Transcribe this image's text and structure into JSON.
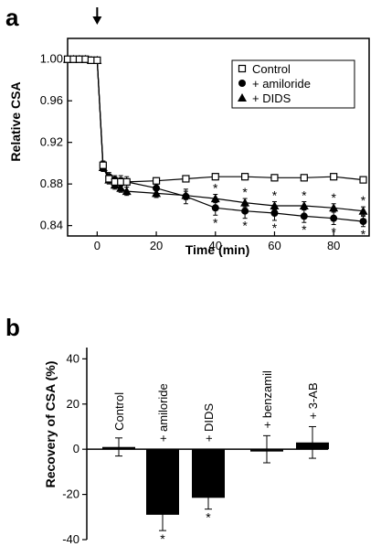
{
  "chart_data": [
    {
      "type": "line",
      "panel_label": "a",
      "xlabel": "Time (min)",
      "ylabel": "Relative CSA",
      "xlim": [
        -10,
        92
      ],
      "ylim": [
        0.83,
        1.02
      ],
      "x_ticks": [
        0,
        20,
        40,
        60,
        80
      ],
      "y_ticks": [
        0.84,
        0.88,
        0.92,
        0.96,
        1.0
      ],
      "y_tick_labels": [
        "0.84",
        "0.88",
        "0.92",
        "0.96",
        "1.00"
      ],
      "arrow_at_x": 0,
      "legend_position": "top-right",
      "grid": false,
      "series": [
        {
          "name": "Control",
          "marker": "open-square",
          "x": [
            -10,
            -8,
            -6,
            -4,
            -2,
            0,
            2,
            4,
            6,
            8,
            10,
            20,
            30,
            40,
            50,
            60,
            70,
            80,
            90
          ],
          "y": [
            1.0,
            1.0,
            1.0,
            1.0,
            0.999,
            0.999,
            0.898,
            0.885,
            0.882,
            0.882,
            0.882,
            0.883,
            0.885,
            0.887,
            0.887,
            0.886,
            0.886,
            0.887,
            0.884
          ],
          "err": [
            0.002,
            0.002,
            0.002,
            0.002,
            0.002,
            0.002,
            0.004,
            0.004,
            0.004,
            0.004,
            0.003,
            0.003,
            0.003,
            0.003,
            0.003,
            0.003,
            0.003,
            0.003,
            0.003
          ],
          "star_above": [],
          "star_below": []
        },
        {
          "name": "+ amiloride",
          "marker": "filled-circle",
          "x": [
            -10,
            -8,
            -6,
            -4,
            -2,
            0,
            2,
            4,
            6,
            8,
            10,
            20,
            30,
            40,
            50,
            60,
            70,
            80,
            90
          ],
          "y": [
            1.0,
            1.0,
            1.0,
            1.0,
            0.999,
            0.999,
            0.898,
            0.887,
            0.884,
            0.883,
            0.882,
            0.876,
            0.868,
            0.857,
            0.854,
            0.852,
            0.849,
            0.847,
            0.844
          ],
          "err": [
            0.002,
            0.002,
            0.002,
            0.002,
            0.002,
            0.002,
            0.004,
            0.004,
            0.004,
            0.005,
            0.005,
            0.005,
            0.007,
            0.007,
            0.007,
            0.007,
            0.006,
            0.006,
            0.005
          ],
          "star_above": [],
          "star_below": [
            40,
            50,
            60,
            70,
            80,
            90
          ]
        },
        {
          "name": "+ DIDS",
          "marker": "filled-triangle",
          "x": [
            -10,
            -8,
            -6,
            -4,
            -2,
            0,
            2,
            4,
            6,
            8,
            10,
            20,
            30,
            40,
            50,
            60,
            70,
            80,
            90
          ],
          "y": [
            1.0,
            1.0,
            1.0,
            1.0,
            0.999,
            0.999,
            0.896,
            0.884,
            0.879,
            0.876,
            0.873,
            0.871,
            0.869,
            0.866,
            0.862,
            0.859,
            0.859,
            0.857,
            0.854
          ],
          "err": [
            0.002,
            0.002,
            0.002,
            0.002,
            0.002,
            0.002,
            0.004,
            0.004,
            0.004,
            0.004,
            0.004,
            0.004,
            0.004,
            0.004,
            0.004,
            0.004,
            0.004,
            0.004,
            0.004
          ],
          "star_above": [
            40,
            50,
            60,
            70,
            80,
            90
          ],
          "star_below": []
        }
      ]
    },
    {
      "type": "bar",
      "panel_label": "b",
      "ylabel": "Recovery of CSA (%)",
      "xlabel": "",
      "ylim": [
        -40,
        45
      ],
      "y_ticks": [
        -40,
        -20,
        0,
        20,
        40
      ],
      "y_tick_labels": [
        "-40",
        "-20",
        "0",
        "20",
        "40"
      ],
      "categories": [
        "Control",
        "+ amiloride",
        "+ DIDS",
        "+ benzamil",
        "+ 3-AB"
      ],
      "values": [
        1,
        -29,
        -21.5,
        0,
        3
      ],
      "err": [
        4,
        7,
        5,
        6,
        7
      ],
      "significant": [
        false,
        true,
        true,
        false,
        false
      ],
      "star": "*",
      "grid": false
    }
  ]
}
